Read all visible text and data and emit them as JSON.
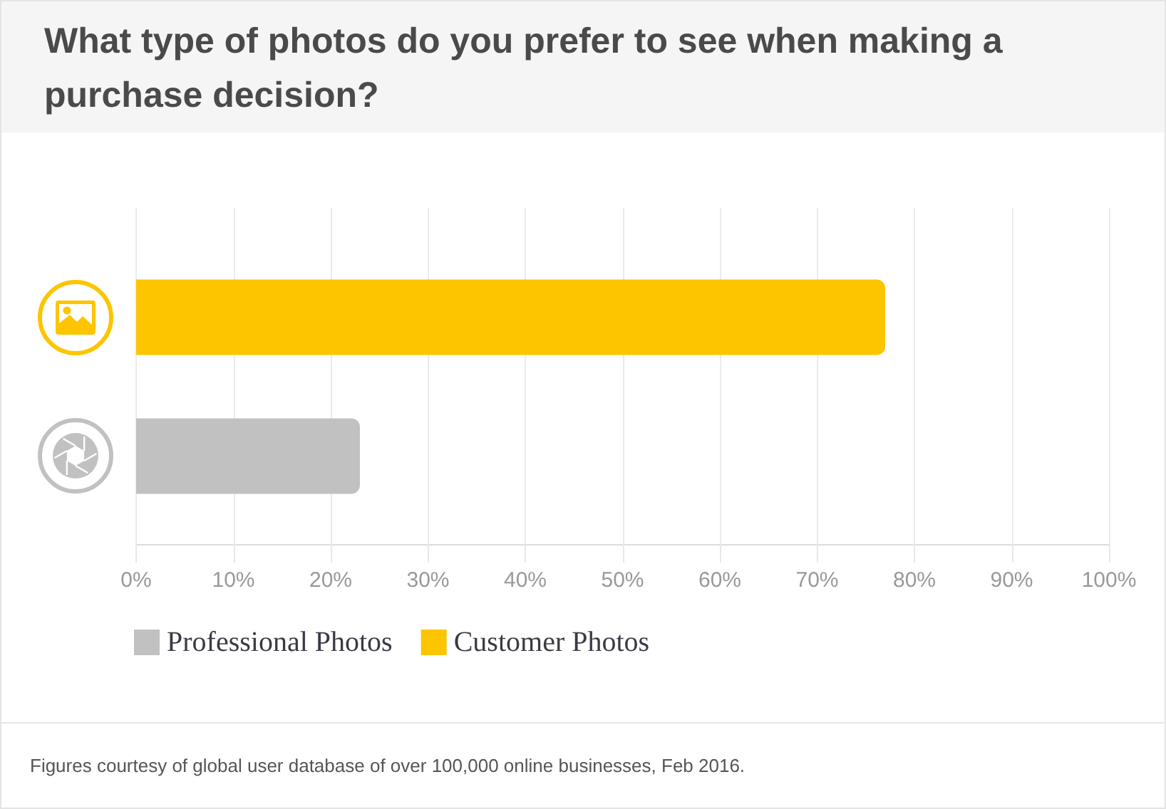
{
  "chart_data": {
    "type": "bar",
    "orientation": "horizontal",
    "title": "What type of photos do you prefer to see when making a purchase decision?",
    "categories": [
      null,
      null
    ],
    "series": [
      {
        "name": "Professional Photos",
        "color": "#c2c1c1",
        "values": [
          null,
          23
        ]
      },
      {
        "name": "Customer Photos",
        "color": "#fdc500",
        "values": [
          77,
          null
        ]
      }
    ],
    "xlim": [
      0,
      100
    ],
    "xticks": [
      {
        "value": 0,
        "label": "0%"
      },
      {
        "value": 10,
        "label": "10%"
      },
      {
        "value": 20,
        "label": "20%"
      },
      {
        "value": 30,
        "label": "30%"
      },
      {
        "value": 40,
        "label": "40%"
      },
      {
        "value": 50,
        "label": "50%"
      },
      {
        "value": 60,
        "label": "60%"
      },
      {
        "value": 70,
        "label": "70%"
      },
      {
        "value": 80,
        "label": "80%"
      },
      {
        "value": 90,
        "label": "90%"
      },
      {
        "value": 100,
        "label": "100%"
      }
    ],
    "grid": "x",
    "tick_labels": "x",
    "legend": "bottom left",
    "annotations": [
      "Figures courtesy of global user database of over 100,000 online businesses, Feb 2016."
    ]
  }
}
